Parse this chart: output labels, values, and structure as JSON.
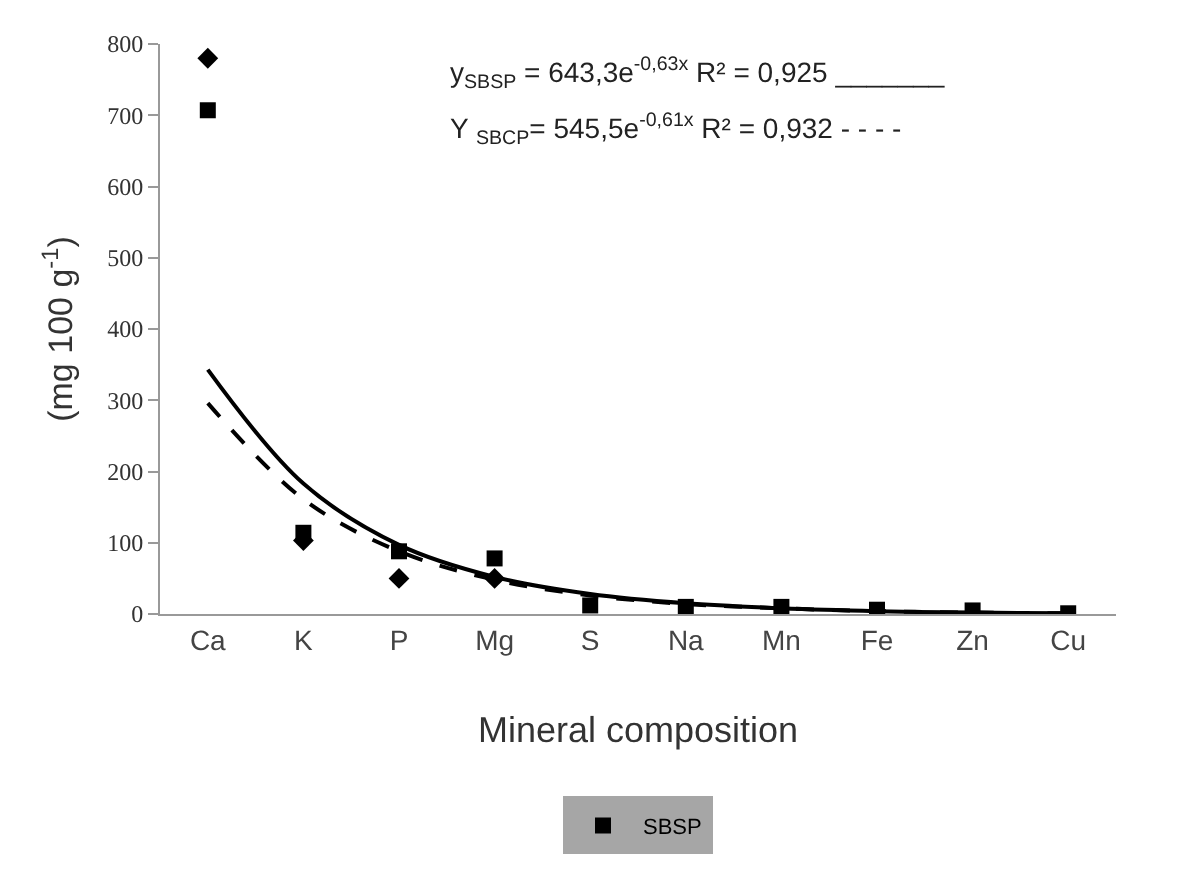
{
  "chart_data": {
    "type": "scatter",
    "xlabel": "Mineral composition",
    "ylabel": "(mg 100 g$^{-1}$)",
    "categories": [
      "Ca",
      "K",
      "P",
      "Mg",
      "S",
      "Na",
      "Mn",
      "Fe",
      "Zn",
      "Cu"
    ],
    "series": [
      {
        "marker": "diamond",
        "color": "#000000",
        "values": [
          780,
          103,
          50,
          50,
          null,
          null,
          null,
          null,
          null,
          null
        ]
      },
      {
        "name": "SBSP",
        "marker": "square",
        "color": "#000000",
        "values": [
          707,
          114,
          88,
          78,
          12,
          10,
          10,
          6,
          5,
          1
        ]
      },
      {
        "type": "line",
        "line_style": "solid",
        "color": "#000000",
        "values": [
          343,
          183,
          97,
          52,
          28,
          15,
          8,
          4,
          2,
          1
        ]
      },
      {
        "type": "line",
        "line_style": "dashed",
        "color": "#000000",
        "values": [
          296,
          161,
          88,
          48,
          26,
          14,
          8,
          4,
          2,
          1
        ]
      }
    ],
    "ylim": [
      0,
      800
    ],
    "yticks": [
      0,
      100,
      200,
      300,
      400,
      500,
      600,
      700,
      800
    ],
    "grid": false,
    "legend": "bottom",
    "annotations": [
      "y$_{SBSP}$ = 643,3e$^{-0,63x}$ R² = 0,925 _______",
      "Y $_{SBCP}$= 545,5e$^{-0,61x}$ R² = 0,932 - - - -"
    ]
  }
}
